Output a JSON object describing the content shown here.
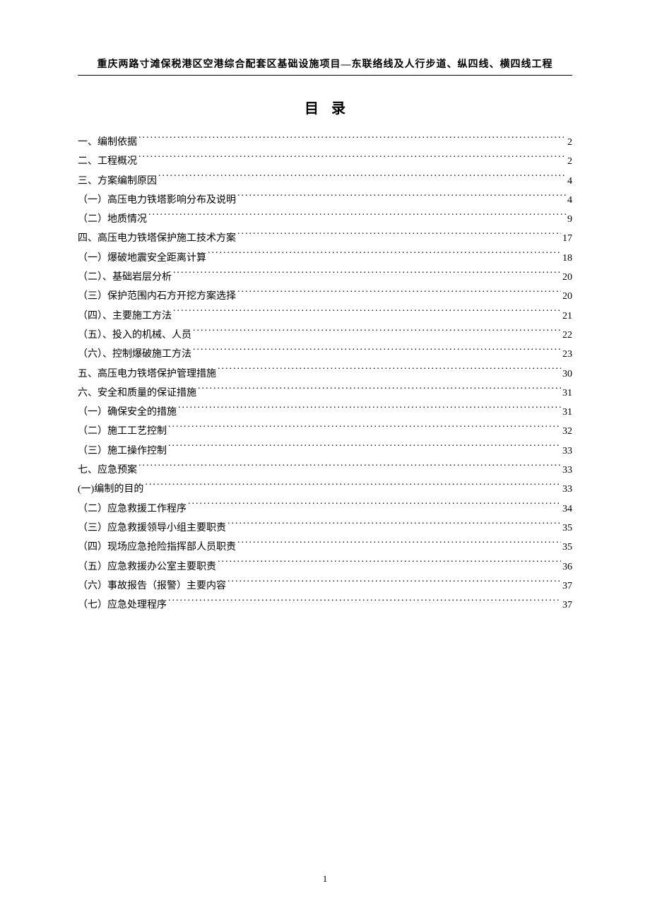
{
  "header": {
    "text": "重庆两路寸滩保税港区空港综合配套区基础设施项目—东联络线及人行步道、纵四线、横四线工程"
  },
  "title": {
    "text": "目录"
  },
  "toc": {
    "items": [
      {
        "label": "一、编制依据",
        "page": "2"
      },
      {
        "label": "二、工程概况",
        "page": "2"
      },
      {
        "label": "三、方案编制原因",
        "page": "4"
      },
      {
        "label": "（一）高压电力铁塔影响分布及说明",
        "page": "4"
      },
      {
        "label": "（二）地质情况",
        "page": "9"
      },
      {
        "label": "四、高压电力铁塔保护施工技术方案",
        "page": "17"
      },
      {
        "label": "（一）爆破地震安全距离计算",
        "page": "18"
      },
      {
        "label": "（二）、基础岩层分析",
        "page": "20"
      },
      {
        "label": "（三）保护范围内石方开挖方案选择",
        "page": "20"
      },
      {
        "label": "（四）、主要施工方法",
        "page": "21"
      },
      {
        "label": "（五）、投入的机械、人员",
        "page": "22"
      },
      {
        "label": "（六）、控制爆破施工方法",
        "page": "23"
      },
      {
        "label": "五、高压电力铁塔保护管理措施",
        "page": "30"
      },
      {
        "label": "六、安全和质量的保证措施",
        "page": "31"
      },
      {
        "label": "（一）确保安全的措施",
        "page": "31"
      },
      {
        "label": "（二）施工工艺控制",
        "page": "32"
      },
      {
        "label": "（三）施工操作控制",
        "page": "33"
      },
      {
        "label": "七、应急预案",
        "page": "33"
      },
      {
        "label": "(一)编制的目的",
        "page": "33"
      },
      {
        "label": "（二）应急救援工作程序",
        "page": "34"
      },
      {
        "label": "（三）应急救援领导小组主要职责",
        "page": "35"
      },
      {
        "label": "（四）现场应急抢险指挥部人员职责",
        "page": "35"
      },
      {
        "label": "（五）应急救援办公室主要职责",
        "page": "36"
      },
      {
        "label": "（六）事故报告（报警）主要内容",
        "page": "37"
      },
      {
        "label": "（七）应急处理程序",
        "page": "37"
      }
    ]
  },
  "footer": {
    "page_number": "1"
  }
}
